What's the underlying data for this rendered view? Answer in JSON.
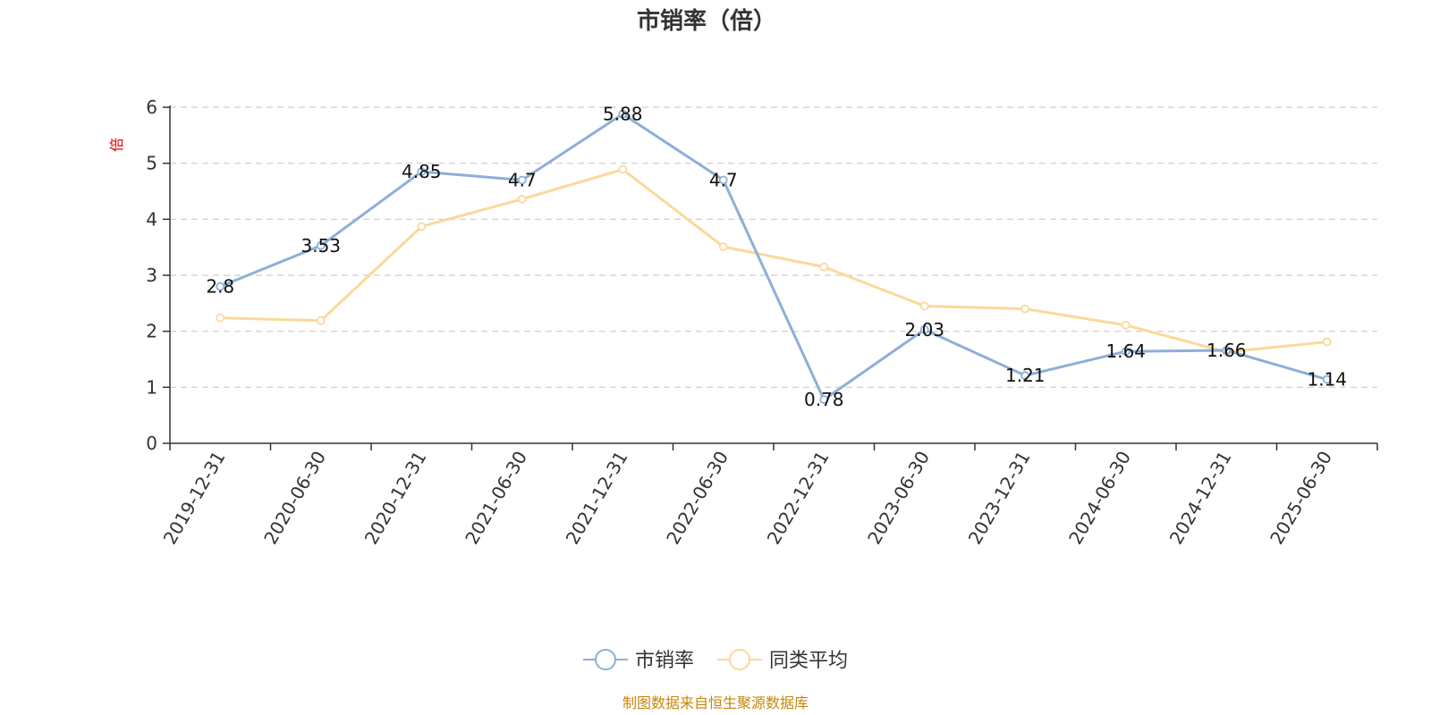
{
  "chart_data": {
    "type": "line",
    "title": "市销率（倍）",
    "ylabel": "倍",
    "xlabel": "",
    "categories": [
      "2019-12-31",
      "2020-06-30",
      "2020-12-31",
      "2021-06-30",
      "2021-12-31",
      "2022-06-30",
      "2022-12-31",
      "2023-06-30",
      "2023-12-31",
      "2024-06-30",
      "2024-12-31",
      "2025-06-30"
    ],
    "ylim": [
      0,
      6
    ],
    "yticks": [
      0,
      1,
      2,
      3,
      4,
      5,
      6
    ],
    "grid": true,
    "legend_position": "bottom",
    "series": [
      {
        "name": "市销率",
        "color": "#8eaed8",
        "values": [
          2.8,
          3.53,
          4.85,
          4.7,
          5.88,
          4.7,
          0.78,
          2.03,
          1.21,
          1.64,
          1.66,
          1.14
        ],
        "labels": [
          "2.8",
          "3.53",
          "4.85",
          "4.7",
          "5.88",
          "4.7",
          "0.78",
          "2.03",
          "1.21",
          "1.64",
          "1.66",
          "1.14"
        ]
      },
      {
        "name": "同类平均",
        "color": "#fbd99a",
        "values": [
          2.24,
          2.19,
          3.87,
          4.36,
          4.89,
          3.51,
          3.15,
          2.45,
          2.4,
          2.11,
          1.63,
          1.81
        ]
      }
    ]
  },
  "source_note": "制图数据来自恒生聚源数据库"
}
